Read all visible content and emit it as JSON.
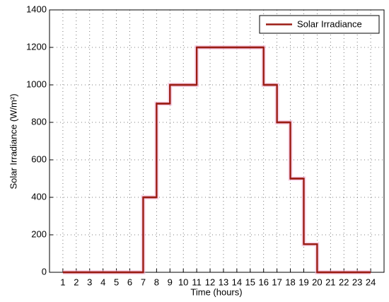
{
  "chart_data": {
    "type": "step",
    "x_label": "Time (hours)",
    "y_label": "Solar Irradiance (W/m²)",
    "x": [
      1,
      2,
      3,
      4,
      5,
      6,
      7,
      8,
      9,
      10,
      11,
      12,
      13,
      14,
      15,
      16,
      17,
      18,
      19,
      20,
      21,
      22,
      23,
      24
    ],
    "series": [
      {
        "name": "Solar Irradiance",
        "color": "#9b1c14",
        "values": [
          0,
          0,
          0,
          0,
          0,
          0,
          400,
          900,
          1000,
          1000,
          1200,
          1200,
          1200,
          1200,
          1200,
          1000,
          800,
          500,
          150,
          0,
          0,
          0,
          0,
          0
        ]
      }
    ],
    "xlim": [
      0,
      25
    ],
    "xticks": [
      1,
      2,
      3,
      4,
      5,
      6,
      7,
      8,
      9,
      10,
      11,
      12,
      13,
      14,
      15,
      16,
      17,
      18,
      19,
      20,
      21,
      22,
      23,
      24
    ],
    "ylim": [
      0,
      1400
    ],
    "yticks": [
      0,
      200,
      400,
      600,
      800,
      1000,
      1200,
      1400
    ],
    "grid": true,
    "legend": "upper right"
  }
}
